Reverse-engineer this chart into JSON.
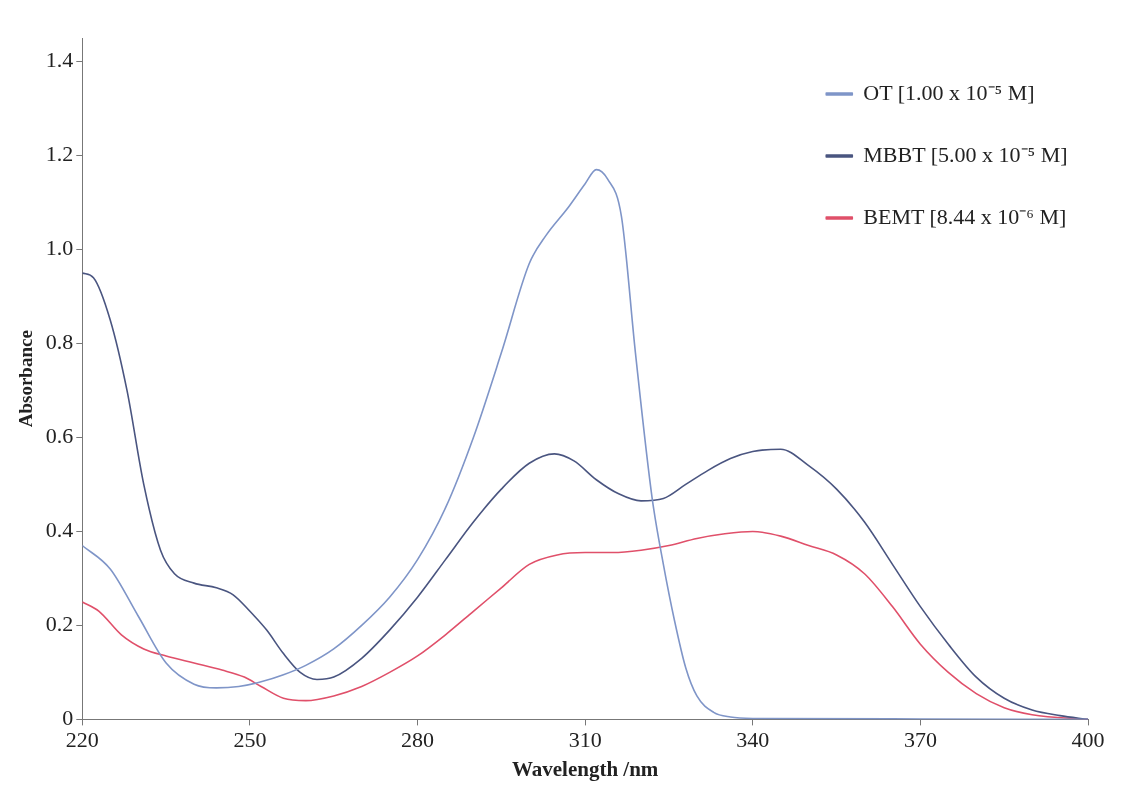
{
  "chart_data": {
    "type": "line",
    "xlabel": "Wavelength /nm",
    "ylabel": "Absorbance",
    "xlim": [
      220,
      400
    ],
    "xticks": [
      220,
      250,
      280,
      310,
      340,
      370,
      400
    ],
    "ylim": [
      0,
      1.45
    ],
    "yticks": [
      0,
      {
        "value": 0.2,
        "label": "0.2"
      },
      {
        "value": 0.4,
        "label": "0.4"
      },
      {
        "value": 0.6,
        "label": "0.6"
      },
      {
        "value": 0.8,
        "label": "0.8"
      },
      {
        "value": 1,
        "label": "1.0"
      },
      {
        "value": 1.2,
        "label": "1.2"
      },
      {
        "value": 1.4,
        "label": "1.4"
      }
    ],
    "grid": false,
    "legend": "top right",
    "marker": "none",
    "line_style": "solid",
    "series": [
      {
        "name": "OT [1.00 x 10⁻⁵ M]",
        "color": "#7f95c8",
        "x": [
          220,
          225,
          230,
          235,
          240,
          244,
          248,
          252,
          256,
          260,
          265,
          270,
          275,
          280,
          285,
          290,
          295,
          300,
          303,
          307,
          310,
          312,
          314,
          316.5,
          319,
          322,
          324,
          326,
          328,
          330,
          333,
          336,
          340,
          370,
          400
        ],
        "values": [
          0.37,
          0.32,
          0.22,
          0.12,
          0.075,
          0.067,
          0.07,
          0.08,
          0.095,
          0.115,
          0.15,
          0.2,
          0.26,
          0.34,
          0.45,
          0.6,
          0.78,
          0.97,
          1.03,
          1.09,
          1.14,
          1.17,
          1.15,
          1.07,
          0.78,
          0.47,
          0.33,
          0.21,
          0.11,
          0.05,
          0.015,
          0.005,
          0.002,
          0.001,
          0
        ]
      },
      {
        "name": "MBBT [5.00 x 10⁻⁵ M]",
        "color": "#4a5580",
        "x": [
          220,
          222,
          225,
          228,
          231,
          234,
          236.5,
          240,
          244,
          247,
          250,
          253,
          256,
          259,
          262,
          265,
          270,
          275,
          280,
          285,
          290,
          295,
          300,
          304.5,
          308,
          312,
          316,
          320,
          324,
          328,
          332,
          336,
          340,
          345,
          350,
          355,
          360,
          365,
          370,
          375,
          380,
          385,
          390,
          395,
          400
        ],
        "values": [
          0.95,
          0.94,
          0.85,
          0.7,
          0.5,
          0.36,
          0.31,
          0.29,
          0.28,
          0.265,
          0.23,
          0.19,
          0.14,
          0.1,
          0.085,
          0.09,
          0.13,
          0.19,
          0.26,
          0.34,
          0.42,
          0.49,
          0.545,
          0.565,
          0.55,
          0.51,
          0.48,
          0.465,
          0.47,
          0.5,
          0.53,
          0.555,
          0.57,
          0.575,
          0.54,
          0.49,
          0.42,
          0.33,
          0.24,
          0.16,
          0.09,
          0.045,
          0.02,
          0.008,
          0
        ]
      },
      {
        "name": "BEMT [8.44 x 10⁻⁶ M]",
        "color": "#e0506a",
        "x": [
          220,
          223,
          227,
          231,
          235,
          240,
          245,
          249,
          252,
          256,
          260,
          265,
          270,
          275,
          280,
          285,
          290,
          295,
          300,
          305,
          310,
          315,
          320,
          325,
          330,
          335,
          340,
          345,
          350,
          355,
          360,
          365,
          370,
          375,
          380,
          385,
          390,
          400
        ],
        "values": [
          0.25,
          0.23,
          0.18,
          0.15,
          0.135,
          0.12,
          0.105,
          0.09,
          0.07,
          0.045,
          0.04,
          0.05,
          0.07,
          0.1,
          0.135,
          0.18,
          0.23,
          0.28,
          0.33,
          0.35,
          0.355,
          0.355,
          0.36,
          0.37,
          0.385,
          0.395,
          0.4,
          0.39,
          0.37,
          0.35,
          0.31,
          0.24,
          0.16,
          0.1,
          0.055,
          0.025,
          0.01,
          0
        ]
      }
    ]
  }
}
